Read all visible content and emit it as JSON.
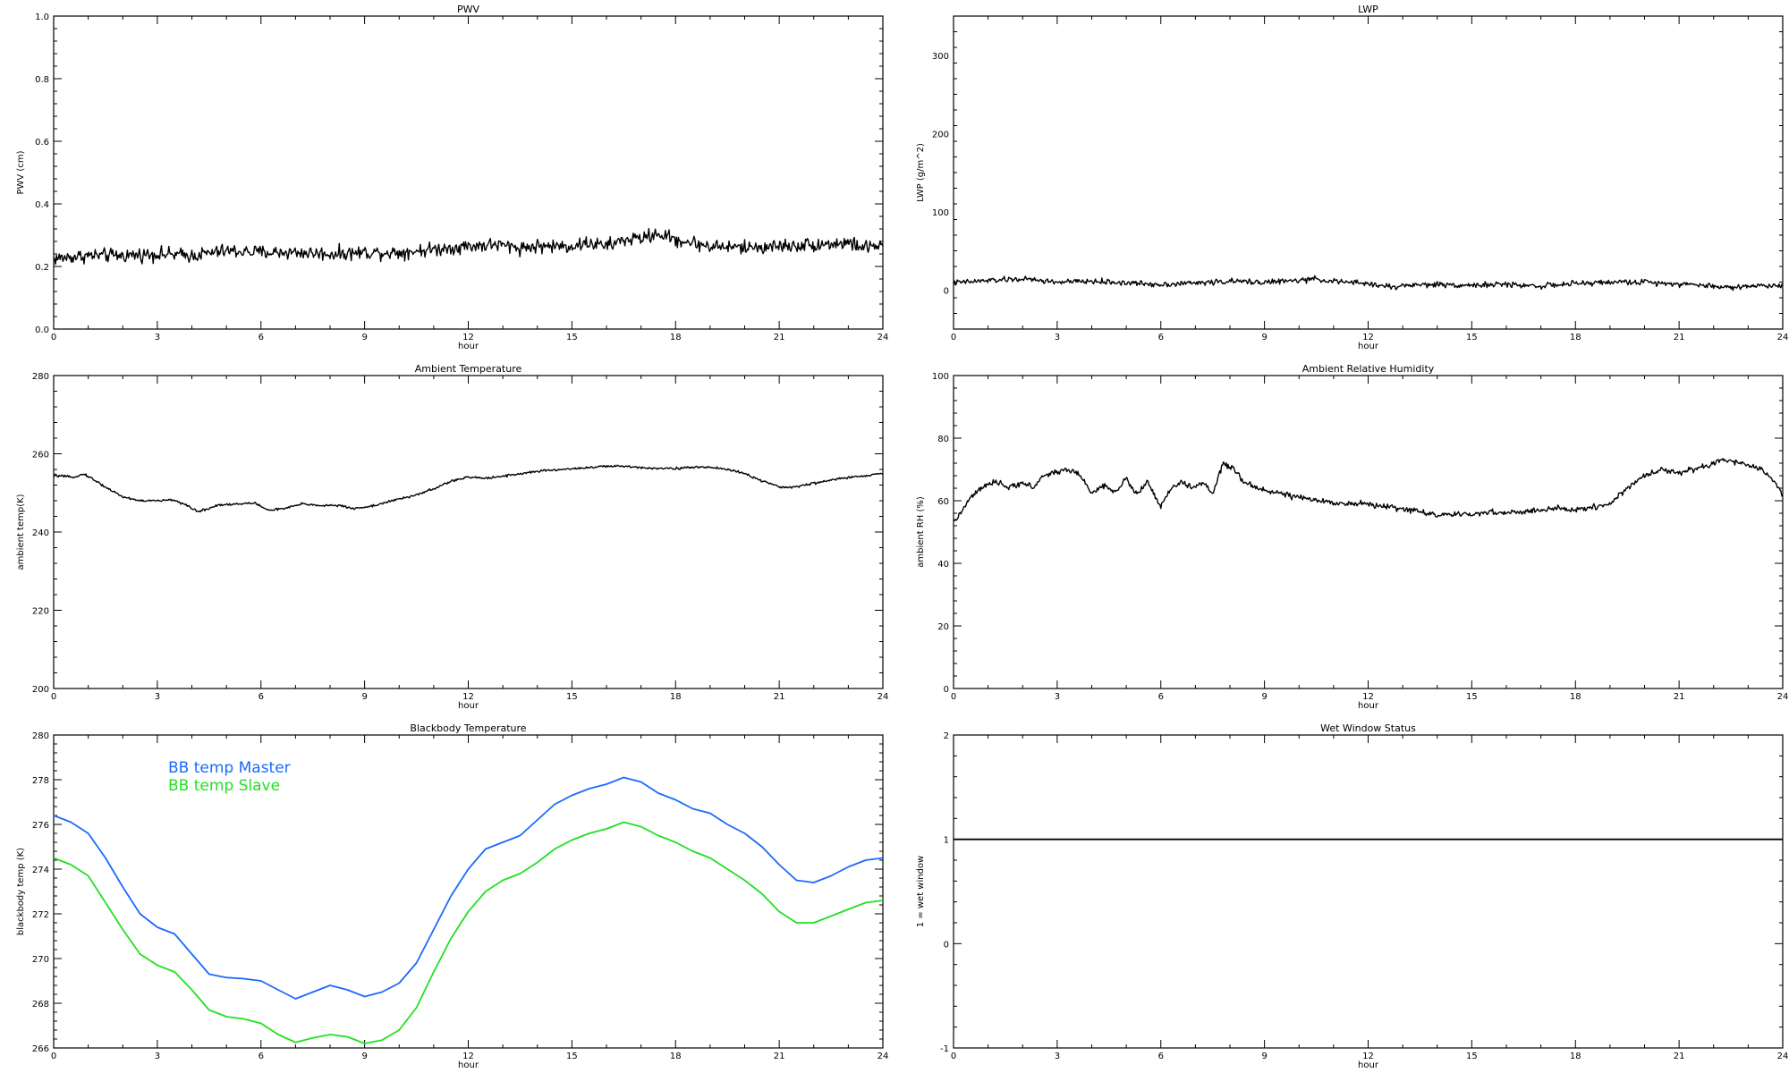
{
  "chart_data": [
    {
      "id": "pwv",
      "type": "line",
      "title": "PWV",
      "xlabel": "hour",
      "ylabel": "PWV (cm)",
      "xlim": [
        0,
        24
      ],
      "ylim": [
        0,
        1
      ],
      "xticks": [
        0,
        3,
        6,
        9,
        12,
        15,
        18,
        21,
        24
      ],
      "yticks": [
        0.0,
        0.2,
        0.4,
        0.6,
        0.8,
        1.0
      ],
      "ytick_labels": [
        "0.0",
        "0.2",
        "0.4",
        "0.6",
        "0.8",
        "1.0"
      ],
      "noise": 0.022,
      "series": [
        {
          "color": "#000000",
          "x": [
            0,
            1,
            2,
            3,
            4,
            5,
            6,
            7,
            8,
            9,
            10,
            11,
            12,
            12.8,
            13.5,
            14,
            15,
            15.5,
            16,
            16.5,
            17,
            17.5,
            18,
            19,
            20,
            21,
            22,
            23,
            23.5,
            24
          ],
          "y": [
            0.225,
            0.235,
            0.235,
            0.24,
            0.235,
            0.25,
            0.245,
            0.245,
            0.24,
            0.245,
            0.245,
            0.255,
            0.265,
            0.27,
            0.26,
            0.265,
            0.265,
            0.275,
            0.265,
            0.285,
            0.29,
            0.305,
            0.285,
            0.265,
            0.26,
            0.265,
            0.27,
            0.275,
            0.26,
            0.27
          ]
        }
      ]
    },
    {
      "id": "lwp",
      "type": "line",
      "title": "LWP",
      "xlabel": "hour",
      "ylabel": "LWP (g/m^2)",
      "xlim": [
        0,
        24
      ],
      "ylim": [
        -50,
        350
      ],
      "xticks": [
        0,
        3,
        6,
        9,
        12,
        15,
        18,
        21,
        24
      ],
      "yticks": [
        0,
        100,
        200,
        300
      ],
      "ytick_labels": [
        "0",
        "100",
        "200",
        "300"
      ],
      "noise": 3.5,
      "series": [
        {
          "color": "#000000",
          "x": [
            0,
            1,
            2,
            3,
            4,
            5,
            6,
            7,
            8,
            9,
            10,
            10.5,
            11,
            12,
            12.8,
            13,
            14,
            15,
            16,
            17,
            18,
            19,
            20,
            21,
            22,
            22.5,
            23,
            24
          ],
          "y": [
            9,
            12,
            14,
            10,
            11,
            9,
            7,
            9,
            11,
            10,
            12,
            14,
            11,
            8,
            3,
            6,
            7,
            6,
            7,
            5,
            8,
            10,
            10,
            8,
            5,
            3,
            5,
            6
          ]
        }
      ]
    },
    {
      "id": "ambient_temperature",
      "type": "line",
      "title": "Ambient Temperature",
      "xlabel": "hour",
      "ylabel": "ambient temp(K)",
      "xlim": [
        0,
        24
      ],
      "ylim": [
        200,
        280
      ],
      "xticks": [
        0,
        3,
        6,
        9,
        12,
        15,
        18,
        21,
        24
      ],
      "yticks": [
        200,
        220,
        240,
        260,
        280
      ],
      "ytick_labels": [
        "200",
        "220",
        "240",
        "260",
        "280"
      ],
      "noise": 0.3,
      "series": [
        {
          "color": "#000000",
          "x": [
            0,
            0.5,
            0.9,
            1.5,
            2,
            2.5,
            3,
            3.5,
            3.9,
            4.2,
            4.8,
            5.5,
            5.8,
            6.2,
            6.7,
            7.2,
            7.7,
            8.2,
            8.7,
            9.2,
            9.8,
            10.3,
            11,
            11.5,
            12,
            12.5,
            13,
            14,
            15,
            16,
            16.5,
            17,
            17.5,
            18,
            18.5,
            19,
            19.5,
            20,
            20.5,
            21,
            21.5,
            22,
            23,
            23.5,
            24
          ],
          "y": [
            254.5,
            254.0,
            254.8,
            251.5,
            249.0,
            248.0,
            248.0,
            248.2,
            246.5,
            245.2,
            247.0,
            247.2,
            247.5,
            245.6,
            246.0,
            247.2,
            246.8,
            246.8,
            246.0,
            246.6,
            248.0,
            249.0,
            251.0,
            253.0,
            254.0,
            253.8,
            254.3,
            255.5,
            256.2,
            256.8,
            256.8,
            256.5,
            256.3,
            256.3,
            256.5,
            256.6,
            256.0,
            255.0,
            253.0,
            251.5,
            251.5,
            252.5,
            254.0,
            254.3,
            255.0
          ]
        }
      ]
    },
    {
      "id": "ambient_rh",
      "type": "line",
      "title": "Ambient Relative Humidity",
      "xlabel": "hour",
      "ylabel": "ambient RH (%)",
      "xlim": [
        0,
        24
      ],
      "ylim": [
        0,
        100
      ],
      "xticks": [
        0,
        3,
        6,
        9,
        12,
        15,
        18,
        21,
        24
      ],
      "yticks": [
        0,
        20,
        40,
        60,
        80,
        100
      ],
      "ytick_labels": [
        "0",
        "20",
        "40",
        "60",
        "80",
        "100"
      ],
      "noise": 0.9,
      "series": [
        {
          "color": "#000000",
          "x": [
            0,
            0.2,
            0.5,
            0.8,
            1.0,
            1.3,
            1.6,
            2.0,
            2.3,
            2.6,
            2.9,
            3.3,
            3.7,
            4.0,
            4.3,
            4.7,
            5.0,
            5.3,
            5.6,
            6.0,
            6.3,
            6.6,
            6.9,
            7.2,
            7.5,
            7.8,
            8.1,
            8.4,
            8.8,
            9.2,
            9.6,
            10.0,
            10.5,
            11.0,
            11.5,
            12.0,
            12.5,
            13.0,
            13.5,
            14.0,
            14.5,
            15.0,
            15.5,
            16.0,
            16.5,
            17.0,
            17.5,
            18.0,
            18.5,
            19.0,
            19.3,
            19.6,
            20.0,
            20.5,
            21.0,
            21.4,
            21.8,
            22.2,
            22.6,
            23.0,
            23.4,
            23.7,
            24
          ],
          "y": [
            53,
            56,
            61,
            64,
            65,
            66,
            64,
            66,
            64,
            68,
            69,
            70,
            68,
            62,
            65,
            63,
            67,
            62,
            66,
            58,
            64,
            66,
            64,
            66,
            62,
            72,
            70,
            66,
            64,
            63,
            62,
            61,
            60,
            59.5,
            59,
            59,
            58,
            57.5,
            56.5,
            55.5,
            55.5,
            55.5,
            56.5,
            56,
            56.5,
            57,
            57.5,
            57,
            58,
            59,
            62,
            65,
            68,
            70,
            69,
            70,
            71,
            73,
            72.5,
            71,
            70,
            67,
            62
          ]
        }
      ]
    },
    {
      "id": "blackbody_temperature",
      "type": "line",
      "title": "Blackbody Temperature",
      "xlabel": "hour",
      "ylabel": "blackbody temp (K)",
      "xlim": [
        0,
        24
      ],
      "ylim": [
        266,
        280
      ],
      "xticks": [
        0,
        3,
        6,
        9,
        12,
        15,
        18,
        21,
        24
      ],
      "yticks": [
        266,
        268,
        270,
        272,
        274,
        276,
        278,
        280
      ],
      "ytick_labels": [
        "266",
        "268",
        "270",
        "272",
        "274",
        "276",
        "278",
        "280"
      ],
      "noise": 0.0,
      "legend_position": "top-left",
      "series": [
        {
          "name": "BB temp Master",
          "color": "#1a6aff",
          "x": [
            0,
            0.5,
            1,
            1.5,
            2,
            2.5,
            3,
            3.5,
            4,
            4.5,
            5,
            5.5,
            6,
            6.5,
            7,
            7.5,
            8,
            8.5,
            9,
            9.5,
            10,
            10.5,
            11,
            11.5,
            12,
            12.5,
            13,
            13.5,
            14,
            14.5,
            15,
            15.5,
            16,
            16.5,
            17,
            17.5,
            18,
            18.5,
            19,
            19.5,
            20,
            20.5,
            21,
            21.5,
            22,
            22.5,
            23,
            23.5,
            24
          ],
          "y": [
            276.4,
            276.1,
            275.6,
            274.5,
            273.2,
            272.0,
            271.4,
            271.1,
            270.2,
            269.3,
            269.15,
            269.1,
            269.0,
            268.6,
            268.2,
            268.5,
            268.8,
            268.6,
            268.3,
            268.5,
            268.9,
            269.8,
            271.3,
            272.8,
            274.0,
            274.9,
            275.2,
            275.5,
            276.2,
            276.9,
            277.3,
            277.6,
            277.8,
            278.1,
            277.9,
            277.4,
            277.1,
            276.7,
            276.5,
            276.0,
            275.6,
            275.0,
            274.2,
            273.5,
            273.4,
            273.7,
            274.1,
            274.4,
            274.5
          ]
        },
        {
          "name": "BB temp Slave",
          "color": "#22e022",
          "x": [
            0,
            0.5,
            1,
            1.5,
            2,
            2.5,
            3,
            3.5,
            4,
            4.5,
            5,
            5.5,
            6,
            6.5,
            7,
            7.5,
            8,
            8.5,
            9,
            9.5,
            10,
            10.5,
            11,
            11.5,
            12,
            12.5,
            13,
            13.5,
            14,
            14.5,
            15,
            15.5,
            16,
            16.5,
            17,
            17.5,
            18,
            18.5,
            19,
            19.5,
            20,
            20.5,
            21,
            21.5,
            22,
            22.5,
            23,
            23.5,
            24
          ],
          "y": [
            274.5,
            274.2,
            273.7,
            272.5,
            271.3,
            270.2,
            269.7,
            269.4,
            268.6,
            267.7,
            267.4,
            267.3,
            267.1,
            266.6,
            266.25,
            266.45,
            266.6,
            266.5,
            266.2,
            266.35,
            266.8,
            267.8,
            269.4,
            270.9,
            272.1,
            273.0,
            273.5,
            273.8,
            274.3,
            274.9,
            275.3,
            275.6,
            275.8,
            276.1,
            275.9,
            275.5,
            275.2,
            274.8,
            274.5,
            274.0,
            273.5,
            272.9,
            272.1,
            271.6,
            271.6,
            271.9,
            272.2,
            272.5,
            272.6
          ]
        }
      ]
    },
    {
      "id": "wet_window",
      "type": "line",
      "title": "Wet Window Status",
      "xlabel": "hour",
      "ylabel": "1 = wet window",
      "xlim": [
        0,
        24
      ],
      "ylim": [
        -1,
        2
      ],
      "xticks": [
        0,
        3,
        6,
        9,
        12,
        15,
        18,
        21,
        24
      ],
      "yticks": [
        -1,
        0,
        1,
        2
      ],
      "ytick_labels": [
        "-1",
        "0",
        "1",
        "2"
      ],
      "noise": 0.0,
      "series": [
        {
          "color": "#000000",
          "x": [
            0,
            24
          ],
          "y": [
            1,
            1
          ]
        }
      ]
    }
  ]
}
